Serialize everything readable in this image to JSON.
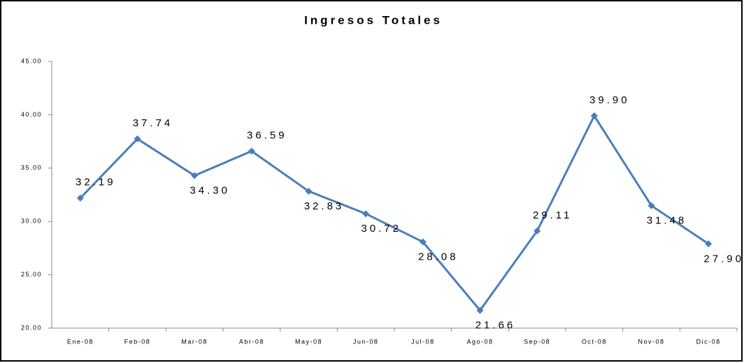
{
  "chart_data": {
    "type": "line",
    "title": "Ingresos Totales",
    "categories": [
      "Ene-08",
      "Feb-08",
      "Mar-08",
      "Abr-08",
      "May-08",
      "Jun-08",
      "Jul-08",
      "Ago-08",
      "Sep-08",
      "Oct-08",
      "Nov-08",
      "Dic-08"
    ],
    "series": [
      {
        "name": "Ingresos Totales",
        "color": "#4a7ebb",
        "values": [
          32.19,
          37.74,
          34.3,
          36.59,
          32.83,
          30.72,
          28.08,
          21.66,
          29.11,
          39.9,
          31.48,
          27.9
        ],
        "value_labels": [
          "32.19",
          "37.74",
          "34.30",
          "36.59",
          "32.83",
          "30.72",
          "28.08",
          "21.66",
          "29.11",
          "39.90",
          "31.48",
          "27.90"
        ]
      }
    ],
    "ylim": [
      20,
      45
    ],
    "yticks": [
      {
        "value": 20,
        "label": "20.00"
      },
      {
        "value": 25,
        "label": "25.00"
      },
      {
        "value": 30,
        "label": "30.00"
      },
      {
        "value": 35,
        "label": "35.00"
      },
      {
        "value": 40,
        "label": "40.00"
      },
      {
        "value": 45,
        "label": "45.00"
      }
    ],
    "grid": false
  }
}
